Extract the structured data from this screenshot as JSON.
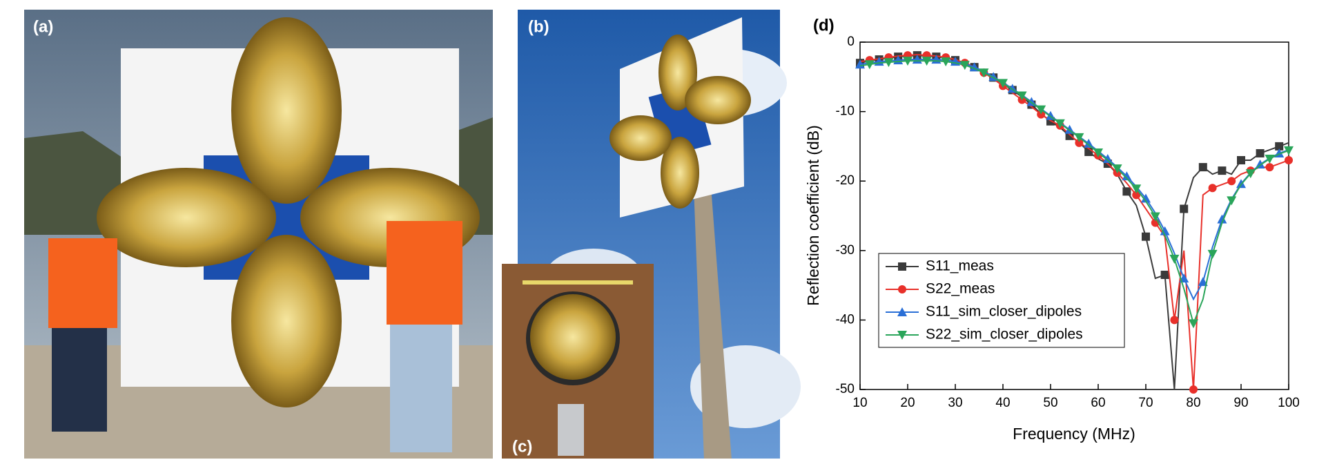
{
  "photo_labels": [
    "(a)",
    "(b)",
    "(c)"
  ],
  "chart_data": {
    "type": "line",
    "title": "(d)",
    "x_label": "Frequency (MHz)",
    "y_label": "Reflection coefficient (dB)",
    "x": [
      10,
      12,
      14,
      16,
      18,
      20,
      22,
      24,
      26,
      28,
      30,
      32,
      34,
      36,
      38,
      40,
      42,
      44,
      46,
      48,
      50,
      52,
      54,
      56,
      58,
      60,
      62,
      64,
      66,
      68,
      70,
      72,
      74,
      76,
      78,
      80,
      82,
      84,
      86,
      88,
      90,
      92,
      94,
      96,
      98,
      100
    ],
    "series": [
      {
        "name": "S11_meas",
        "color": "#3a3a3a",
        "marker": "square",
        "values": [
          -3.0,
          -2.7,
          -2.5,
          -2.3,
          -2.1,
          -2.0,
          -1.9,
          -2.0,
          -2.1,
          -2.3,
          -2.6,
          -3.0,
          -3.6,
          -4.3,
          -5.1,
          -6.0,
          -6.9,
          -7.9,
          -9.0,
          -10.3,
          -11.4,
          -12.3,
          -13.5,
          -14.4,
          -15.8,
          -16.8,
          -17.5,
          -19.0,
          -21.5,
          -23.5,
          -28.0,
          -34.0,
          -33.5,
          -50.0,
          -24.0,
          -19.5,
          -18.0,
          -19.0,
          -18.5,
          -19.0,
          -17.0,
          -17.0,
          -16.0,
          -15.5,
          -15.0,
          -14.5
        ]
      },
      {
        "name": "S22_meas",
        "color": "#e8302a",
        "marker": "circle",
        "values": [
          -2.8,
          -2.6,
          -2.4,
          -2.2,
          -2.0,
          -1.9,
          -1.8,
          -1.9,
          -2.0,
          -2.2,
          -2.5,
          -3.0,
          -3.6,
          -4.4,
          -5.3,
          -6.3,
          -7.3,
          -8.3,
          -9.3,
          -10.4,
          -11.3,
          -12.0,
          -13.3,
          -14.5,
          -15.3,
          -16.3,
          -17.5,
          -18.8,
          -20.3,
          -22.0,
          -24.0,
          -26.0,
          -28.0,
          -40.0,
          -30.0,
          -50.0,
          -22.0,
          -21.0,
          -20.5,
          -20.0,
          -19.0,
          -18.5,
          -18.0,
          -18.0,
          -17.5,
          -17.0
        ]
      },
      {
        "name": "S11_sim_closer_dipoles",
        "color": "#2a6fd6",
        "marker": "triangle-up",
        "values": [
          -3.2,
          -3.0,
          -2.8,
          -2.7,
          -2.6,
          -2.5,
          -2.5,
          -2.5,
          -2.5,
          -2.6,
          -2.8,
          -3.1,
          -3.6,
          -4.2,
          -5.0,
          -5.8,
          -6.7,
          -7.6,
          -8.6,
          -9.6,
          -10.6,
          -11.6,
          -12.6,
          -13.6,
          -14.6,
          -15.7,
          -16.8,
          -18.0,
          -19.3,
          -20.8,
          -22.5,
          -24.6,
          -27.2,
          -30.4,
          -34.0,
          -37.0,
          -34.5,
          -29.5,
          -25.5,
          -22.6,
          -20.4,
          -18.8,
          -17.6,
          -16.7,
          -16.0,
          -15.5
        ]
      },
      {
        "name": "S22_sim_closer_dipoles",
        "color": "#2aa55a",
        "marker": "triangle-down",
        "values": [
          -3.4,
          -3.2,
          -3.0,
          -2.9,
          -2.8,
          -2.7,
          -2.7,
          -2.7,
          -2.7,
          -2.8,
          -3.0,
          -3.3,
          -3.8,
          -4.4,
          -5.1,
          -5.9,
          -6.8,
          -7.7,
          -8.7,
          -9.7,
          -10.7,
          -11.7,
          -12.7,
          -13.7,
          -14.8,
          -15.9,
          -17.0,
          -18.2,
          -19.6,
          -21.1,
          -22.9,
          -25.1,
          -27.8,
          -31.2,
          -35.5,
          -40.5,
          -37.0,
          -30.5,
          -26.0,
          -22.8,
          -20.5,
          -18.9,
          -17.7,
          -16.8,
          -16.1,
          -15.6
        ]
      }
    ],
    "xlim": [
      10,
      100
    ],
    "xticks": [
      10,
      20,
      30,
      40,
      50,
      60,
      70,
      80,
      90,
      100
    ],
    "ylim": [
      -50,
      0
    ],
    "yticks": [
      -50,
      -40,
      -30,
      -20,
      -10,
      0
    ],
    "grid": false,
    "legend": "left"
  }
}
